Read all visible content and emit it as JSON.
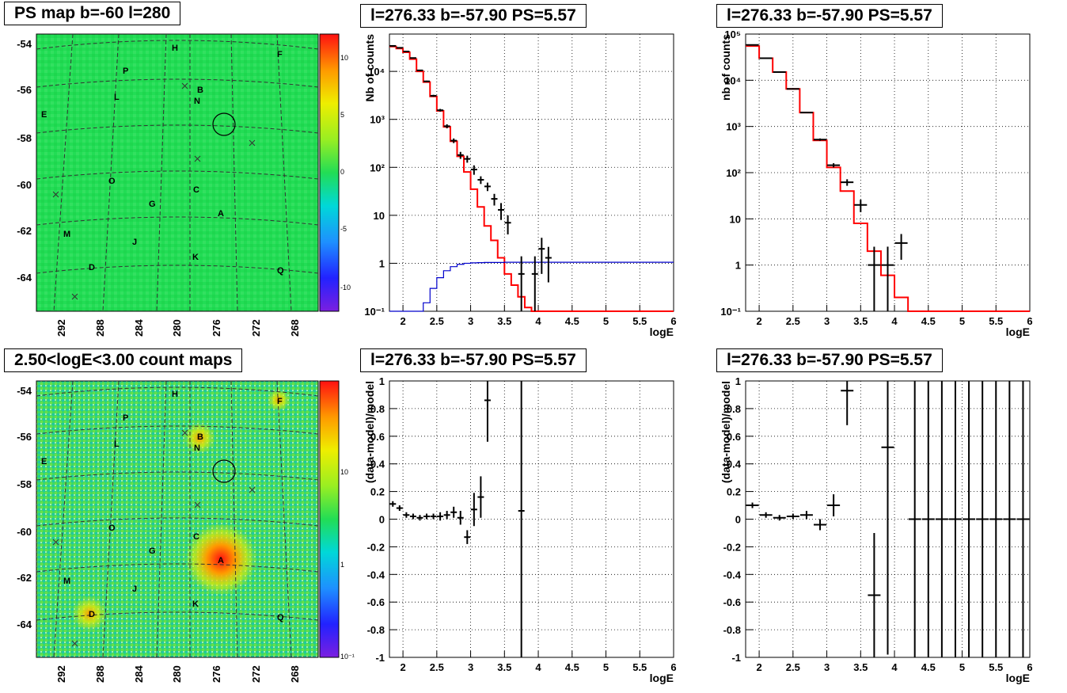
{
  "panel_titles": {
    "map_top": "PS map b=-60 l=280",
    "map_bottom": "2.50<logE<3.00 count maps",
    "p2": "l=276.33 b=-57.90 PS=5.57",
    "p3": "l=276.33 b=-57.90 PS=5.57",
    "p5": "l=276.33 b=-57.90 PS=5.57",
    "p6": "l=276.33 b=-57.90 PS=5.57"
  },
  "maps": {
    "y_ticks": [
      "-54",
      "-56",
      "-58",
      "-60",
      "-62",
      "-64"
    ],
    "x_ticks": [
      "292",
      "288",
      "284",
      "280",
      "276",
      "272",
      "268"
    ],
    "source_labels": [
      "H",
      "F",
      "P",
      "L",
      "B",
      "N",
      "E",
      "O",
      "C",
      "G",
      "A",
      "M",
      "J",
      "K",
      "D",
      "Q"
    ],
    "top_colorbar_ticks": [
      "10",
      "5",
      "0",
      "-5",
      "-10"
    ],
    "bottom_colorbar_ticks": [
      "10",
      "1",
      "10⁻¹"
    ]
  },
  "colors": {
    "model": "#ff0000",
    "background": "#0000cc",
    "data": "#000000",
    "map_base": "#22dd55"
  },
  "chart_data": [
    {
      "type": "line",
      "title": "l=276.33 b=-57.90 PS=5.57",
      "xlabel": "logE",
      "ylabel": "Nb of counts",
      "xlim": [
        1.8,
        6
      ],
      "ylim": [
        0.1,
        60000
      ],
      "yscale": "log",
      "xticks": [
        "2",
        "2.5",
        "3",
        "3.5",
        "4",
        "4.5",
        "5",
        "5.5",
        "6"
      ],
      "yticks": [
        "10⁻¹",
        "1",
        "10",
        "10²",
        "10³",
        "10⁴"
      ],
      "grid": true,
      "series": [
        {
          "x": [
            1.8,
            1.9,
            2.0,
            2.1,
            2.2,
            2.3,
            2.4,
            2.5,
            2.6,
            2.7,
            2.8,
            2.9,
            3.0,
            3.1,
            3.2,
            3.3,
            3.4,
            3.5,
            3.6,
            3.7,
            3.8,
            3.9,
            4.0,
            4.1,
            4.2,
            4.3,
            4.4,
            4.5,
            4.6,
            4.7,
            4.8,
            4.9,
            5.0,
            5.1,
            5.2,
            5.3,
            5.4,
            5.5,
            5.6,
            5.7,
            5.8,
            5.9
          ],
          "values": [
            33000,
            30000,
            25000,
            18000,
            10000,
            6000,
            3000,
            1500,
            700,
            350,
            170,
            80,
            35,
            15,
            6,
            3,
            1.3,
            0.6,
            0.35,
            0.2,
            0.12,
            0.1,
            0.1,
            0.1,
            0.1,
            0.1,
            0.1,
            0.1,
            0.1,
            0.1,
            0.1,
            0.1,
            0.1,
            0.1,
            0.1,
            0.1,
            0.1,
            0.1,
            0.1,
            0.1,
            0.1,
            0.1
          ]
        },
        {
          "x": [
            1.8,
            1.9,
            2.0,
            2.1,
            2.2,
            2.3,
            2.4,
            2.5,
            2.6,
            2.7,
            2.8,
            2.9,
            3.0,
            3.1,
            3.2,
            3.3,
            3.4,
            3.5,
            3.6,
            3.7,
            3.8,
            3.9,
            4.0,
            4.1,
            4.2,
            4.3,
            4.4,
            4.5,
            4.6,
            4.7,
            4.8,
            4.9,
            5.0,
            5.1,
            5.2,
            5.3,
            5.4,
            5.5,
            5.6,
            5.7,
            5.8,
            5.9
          ],
          "values": [
            0.1,
            0.1,
            0.1,
            0.1,
            0.1,
            0.15,
            0.3,
            0.5,
            0.7,
            0.85,
            0.95,
            1.0,
            1.02,
            1.03,
            1.04,
            1.04,
            1.04,
            1.05,
            1.05,
            1.05,
            1.05,
            1.05,
            1.05,
            1.05,
            1.05,
            1.05,
            1.05,
            1.05,
            1.05,
            1.05,
            1.05,
            1.05,
            1.05,
            1.05,
            1.05,
            1.05,
            1.05,
            1.05,
            1.05,
            1.05,
            1.05,
            1.05
          ]
        },
        {
          "x": [
            1.85,
            1.95,
            2.05,
            2.15,
            2.25,
            2.35,
            2.45,
            2.55,
            2.65,
            2.75,
            2.85,
            2.95,
            3.05,
            3.15,
            3.25,
            3.35,
            3.45,
            3.55,
            3.75,
            3.95,
            4.05,
            4.15
          ],
          "values": [
            34000,
            31000,
            26000,
            19000,
            10500,
            6200,
            3100,
            1550,
            720,
            360,
            180,
            150,
            90,
            55,
            40,
            22,
            13,
            7,
            0.6,
            0.6,
            2,
            1.3
          ],
          "err_lo": [
            600,
            600,
            500,
            400,
            300,
            200,
            150,
            100,
            70,
            40,
            30,
            25,
            20,
            10,
            8,
            6,
            5,
            3,
            0.55,
            0.55,
            1.4,
            0.9
          ],
          "err_hi": [
            600,
            600,
            500,
            400,
            300,
            200,
            150,
            100,
            70,
            40,
            30,
            25,
            20,
            10,
            8,
            6,
            5,
            3,
            0.8,
            0.8,
            1.4,
            0.9
          ]
        }
      ]
    },
    {
      "type": "line",
      "title": "l=276.33 b=-57.90 PS=5.57",
      "xlabel": "logE",
      "ylabel": "nb of counts",
      "xlim": [
        1.8,
        6
      ],
      "ylim": [
        0.1,
        100000
      ],
      "yscale": "log",
      "xticks": [
        "2",
        "2.5",
        "3",
        "3.5",
        "4",
        "4.5",
        "5",
        "5.5",
        "6"
      ],
      "yticks": [
        "10⁻¹",
        "1",
        "10",
        "10²",
        "10³",
        "10⁴",
        "10⁵"
      ],
      "grid": true,
      "series": [
        {
          "x": [
            1.8,
            2.0,
            2.2,
            2.4,
            2.6,
            2.8,
            3.0,
            3.2,
            3.4,
            3.6,
            3.8,
            4.0,
            4.2,
            4.4,
            4.6,
            4.8,
            5.0,
            5.2,
            5.4,
            5.6,
            5.8
          ],
          "values": [
            55000,
            30000,
            15000,
            6500,
            2000,
            500,
            130,
            40,
            8,
            2,
            0.6,
            0.2,
            0.1,
            0.1,
            0.1,
            0.1,
            0.1,
            0.1,
            0.1,
            0.1,
            0.1
          ]
        },
        {
          "x": [
            1.9,
            2.1,
            2.3,
            2.5,
            2.7,
            2.9,
            3.1,
            3.3,
            3.5,
            3.7,
            3.9,
            4.1
          ],
          "values": [
            58000,
            30000,
            15000,
            6500,
            2000,
            520,
            145,
            62,
            20,
            1,
            1,
            3
          ],
          "err_lo": [
            500,
            300,
            200,
            100,
            60,
            30,
            15,
            10,
            6,
            0.9,
            0.9,
            1.7
          ],
          "err_hi": [
            500,
            300,
            200,
            100,
            60,
            30,
            15,
            10,
            6,
            1.5,
            1.5,
            1.7
          ]
        }
      ]
    },
    {
      "type": "scatter",
      "title": "l=276.33 b=-57.90 PS=5.57",
      "xlabel": "logE",
      "ylabel": "(data-model)/model",
      "xlim": [
        1.8,
        6
      ],
      "ylim": [
        -1,
        1
      ],
      "xticks": [
        "2",
        "2.5",
        "3",
        "3.5",
        "4",
        "4.5",
        "5",
        "5.5",
        "6"
      ],
      "yticks": [
        "-1",
        "-0.8",
        "-0.6",
        "-0.4",
        "-0.2",
        "0",
        "0.2",
        "0.4",
        "0.6",
        "0.8",
        "1"
      ],
      "grid": true,
      "series": [
        {
          "x": [
            1.85,
            1.95,
            2.05,
            2.15,
            2.25,
            2.35,
            2.45,
            2.55,
            2.65,
            2.75,
            2.85,
            2.95,
            3.05,
            3.15,
            3.25,
            3.75
          ],
          "values": [
            0.11,
            0.08,
            0.03,
            0.02,
            0.01,
            0.02,
            0.02,
            0.02,
            0.03,
            0.05,
            0.01,
            -0.13,
            0.07,
            0.16,
            0.86,
            0.06
          ],
          "err": [
            0.02,
            0.02,
            0.02,
            0.02,
            0.02,
            0.02,
            0.02,
            0.03,
            0.03,
            0.04,
            0.05,
            0.05,
            0.12,
            0.15,
            0.3,
            1.5
          ]
        }
      ]
    },
    {
      "type": "scatter",
      "title": "l=276.33 b=-57.90 PS=5.57",
      "xlabel": "logE",
      "ylabel": "(data-model)/model",
      "xlim": [
        1.8,
        6
      ],
      "ylim": [
        -1,
        1
      ],
      "xticks": [
        "2",
        "2.5",
        "3",
        "3.5",
        "4",
        "4.5",
        "5",
        "5.5",
        "6"
      ],
      "yticks": [
        "-1",
        "-0.8",
        "-0.6",
        "-0.4",
        "-0.2",
        "0",
        "0.2",
        "0.4",
        "0.6",
        "0.8",
        "1"
      ],
      "grid": true,
      "series": [
        {
          "x": [
            1.9,
            2.1,
            2.3,
            2.5,
            2.7,
            2.9,
            3.1,
            3.3,
            3.7,
            3.9,
            4.3,
            4.5,
            4.7,
            4.9,
            5.1,
            5.3,
            5.5,
            5.7,
            5.9
          ],
          "values": [
            0.1,
            0.03,
            0.01,
            0.02,
            0.03,
            -0.04,
            0.1,
            0.93,
            -0.55,
            0.52,
            0,
            0,
            0,
            0,
            0,
            0,
            0,
            0,
            0
          ],
          "err": [
            0.02,
            0.02,
            0.02,
            0.02,
            0.03,
            0.04,
            0.08,
            0.25,
            0.45,
            1.5,
            1.5,
            1.5,
            1.5,
            1.5,
            1.5,
            1.5,
            1.5,
            1.5,
            1.5
          ]
        }
      ]
    }
  ]
}
